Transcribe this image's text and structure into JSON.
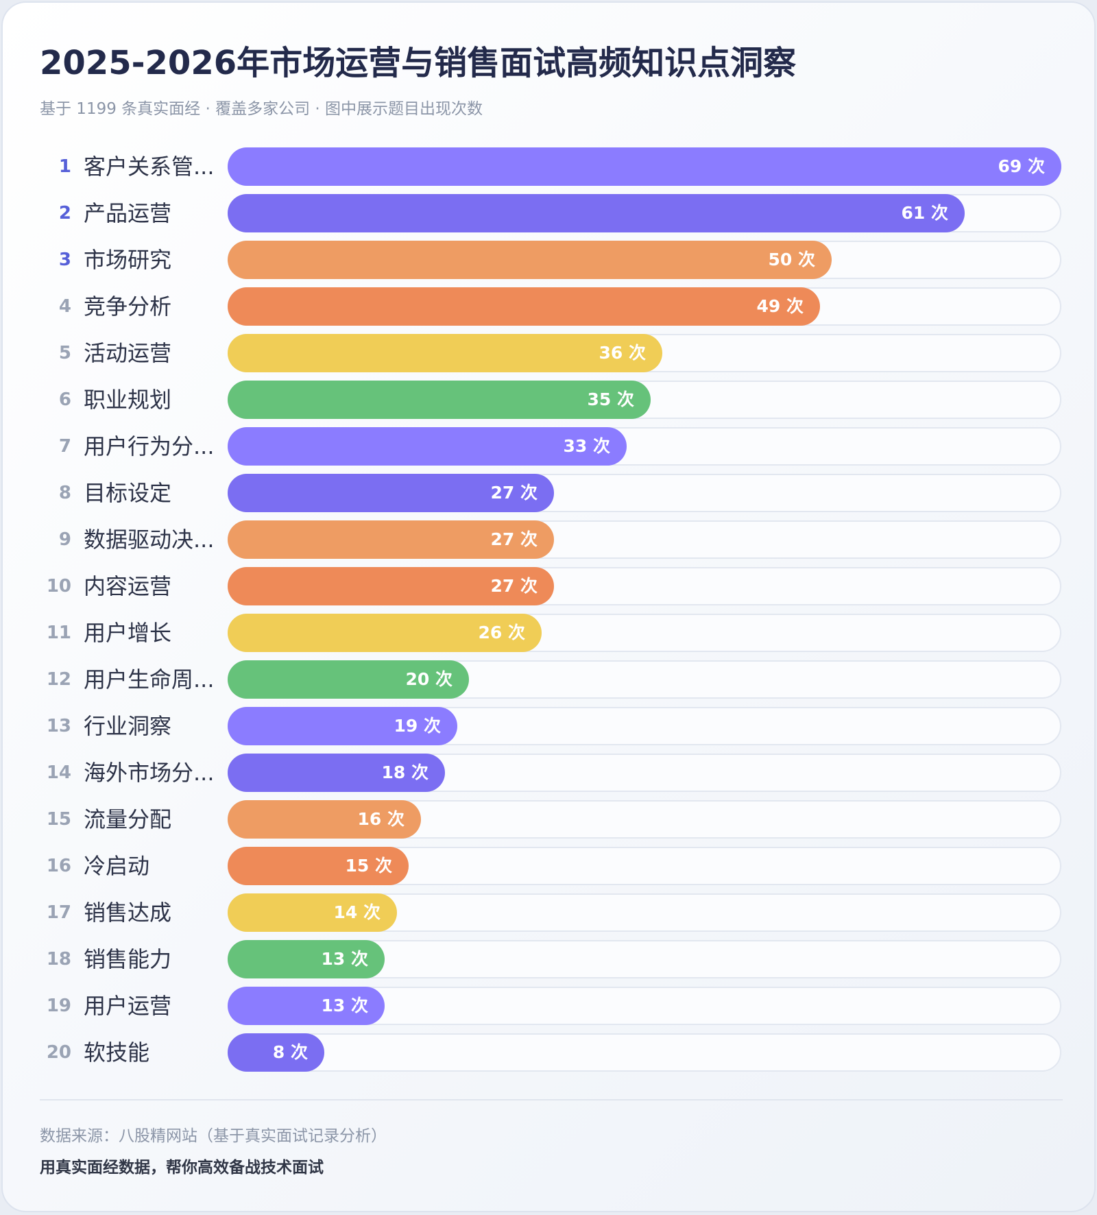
{
  "header": {
    "title": "2025-2026年市场运营与销售面试高频知识点洞察",
    "subtitle": "基于 1199 条真实面经 · 覆盖多家公司 · 图中展示题目出现次数"
  },
  "footer": {
    "source": "数据来源：八股精网站（基于真实面试记录分析）",
    "slogan": "用真实面经数据，帮你高效备战技术面试"
  },
  "value_unit": "次",
  "palette": [
    "#8b7cff",
    "#7b6ef2",
    "#ee9c63",
    "#ee8a58",
    "#f0cd56",
    "#66c27a"
  ],
  "chart_data": {
    "type": "bar",
    "orientation": "horizontal",
    "xlim": [
      0,
      69
    ],
    "categories": [
      {
        "rank": "1",
        "label": "客户关系管...",
        "value": 69
      },
      {
        "rank": "2",
        "label": "产品运营",
        "value": 61
      },
      {
        "rank": "3",
        "label": "市场研究",
        "value": 50
      },
      {
        "rank": "4",
        "label": "竞争分析",
        "value": 49
      },
      {
        "rank": "5",
        "label": "活动运营",
        "value": 36
      },
      {
        "rank": "6",
        "label": "职业规划",
        "value": 35
      },
      {
        "rank": "7",
        "label": "用户行为分...",
        "value": 33
      },
      {
        "rank": "8",
        "label": "目标设定",
        "value": 27
      },
      {
        "rank": "9",
        "label": "数据驱动决...",
        "value": 27
      },
      {
        "rank": "10",
        "label": "内容运营",
        "value": 27
      },
      {
        "rank": "11",
        "label": "用户增长",
        "value": 26
      },
      {
        "rank": "12",
        "label": "用户生命周...",
        "value": 20
      },
      {
        "rank": "13",
        "label": "行业洞察",
        "value": 19
      },
      {
        "rank": "14",
        "label": "海外市场分...",
        "value": 18
      },
      {
        "rank": "15",
        "label": "流量分配",
        "value": 16
      },
      {
        "rank": "16",
        "label": "冷启动",
        "value": 15
      },
      {
        "rank": "17",
        "label": "销售达成",
        "value": 14
      },
      {
        "rank": "18",
        "label": "销售能力",
        "value": 13
      },
      {
        "rank": "19",
        "label": "用户运营",
        "value": 13
      },
      {
        "rank": "20",
        "label": "软技能",
        "value": 8
      }
    ]
  }
}
